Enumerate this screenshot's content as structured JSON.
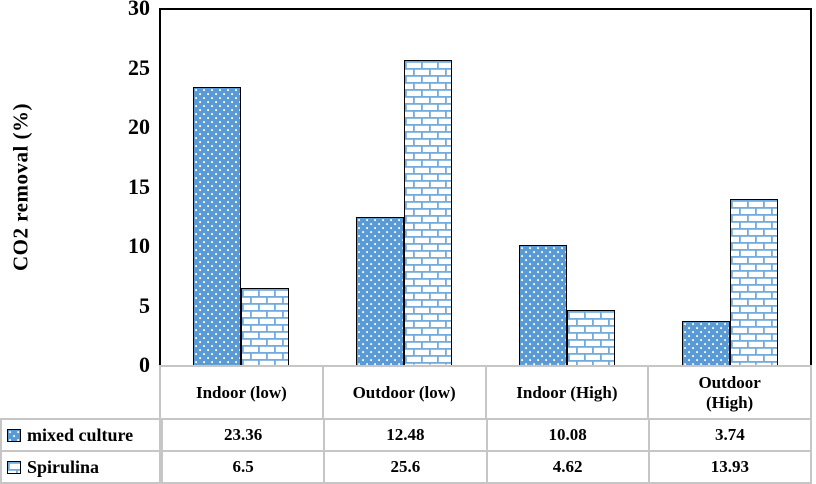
{
  "chart_data": {
    "type": "bar",
    "title": "",
    "ylabel": "CO2 removal (%)",
    "xlabel": "",
    "ylim": [
      0,
      30
    ],
    "yticks": [
      0,
      5,
      10,
      15,
      20,
      25,
      30
    ],
    "grid": false,
    "legend_position": "data-table-left",
    "has_data_table": true,
    "categories": [
      "Indoor (low)",
      "Outdoor (low)",
      "Indoor (High)",
      "Outdoor\n(High)"
    ],
    "series": [
      {
        "name": "mixed culture",
        "pattern": "dots",
        "fill": "#5b9bd5",
        "values": [
          23.36,
          12.48,
          10.08,
          3.74
        ]
      },
      {
        "name": "Spirulina",
        "pattern": "brick",
        "fill": "#ffffff",
        "values": [
          6.5,
          25.6,
          4.62,
          13.93
        ]
      }
    ],
    "colors": {
      "bar_outline": "#000000",
      "dot_fill": "#ffffff",
      "brick_line": "#74abdd",
      "table_border": "#c6c6c6",
      "axis_line": "#000000"
    }
  }
}
